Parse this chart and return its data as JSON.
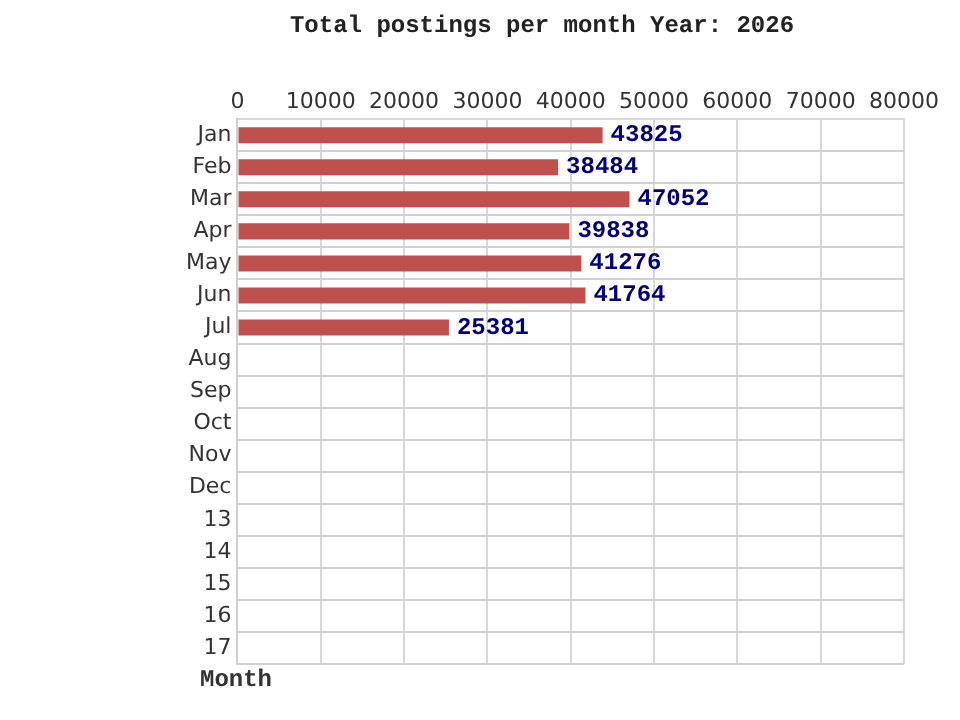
{
  "chart_data": {
    "type": "bar",
    "orientation": "horizontal",
    "title": "Total postings per month Year: 2026",
    "ylabel": "Month",
    "categories": [
      "Jan",
      "Feb",
      "Mar",
      "Apr",
      "May",
      "Jun",
      "Jul",
      "Aug",
      "Sep",
      "Oct",
      "Nov",
      "Dec",
      "13",
      "14",
      "15",
      "16",
      "17"
    ],
    "values": [
      43825,
      38484,
      47052,
      39838,
      41276,
      41764,
      25381,
      null,
      null,
      null,
      null,
      null,
      null,
      null,
      null,
      null,
      null
    ],
    "color": "#c0504d",
    "xlim": [
      0,
      80000
    ],
    "xticks": [
      0,
      10000,
      20000,
      30000,
      40000,
      50000,
      60000,
      70000,
      80000
    ],
    "grid": true,
    "data_labels": true
  }
}
